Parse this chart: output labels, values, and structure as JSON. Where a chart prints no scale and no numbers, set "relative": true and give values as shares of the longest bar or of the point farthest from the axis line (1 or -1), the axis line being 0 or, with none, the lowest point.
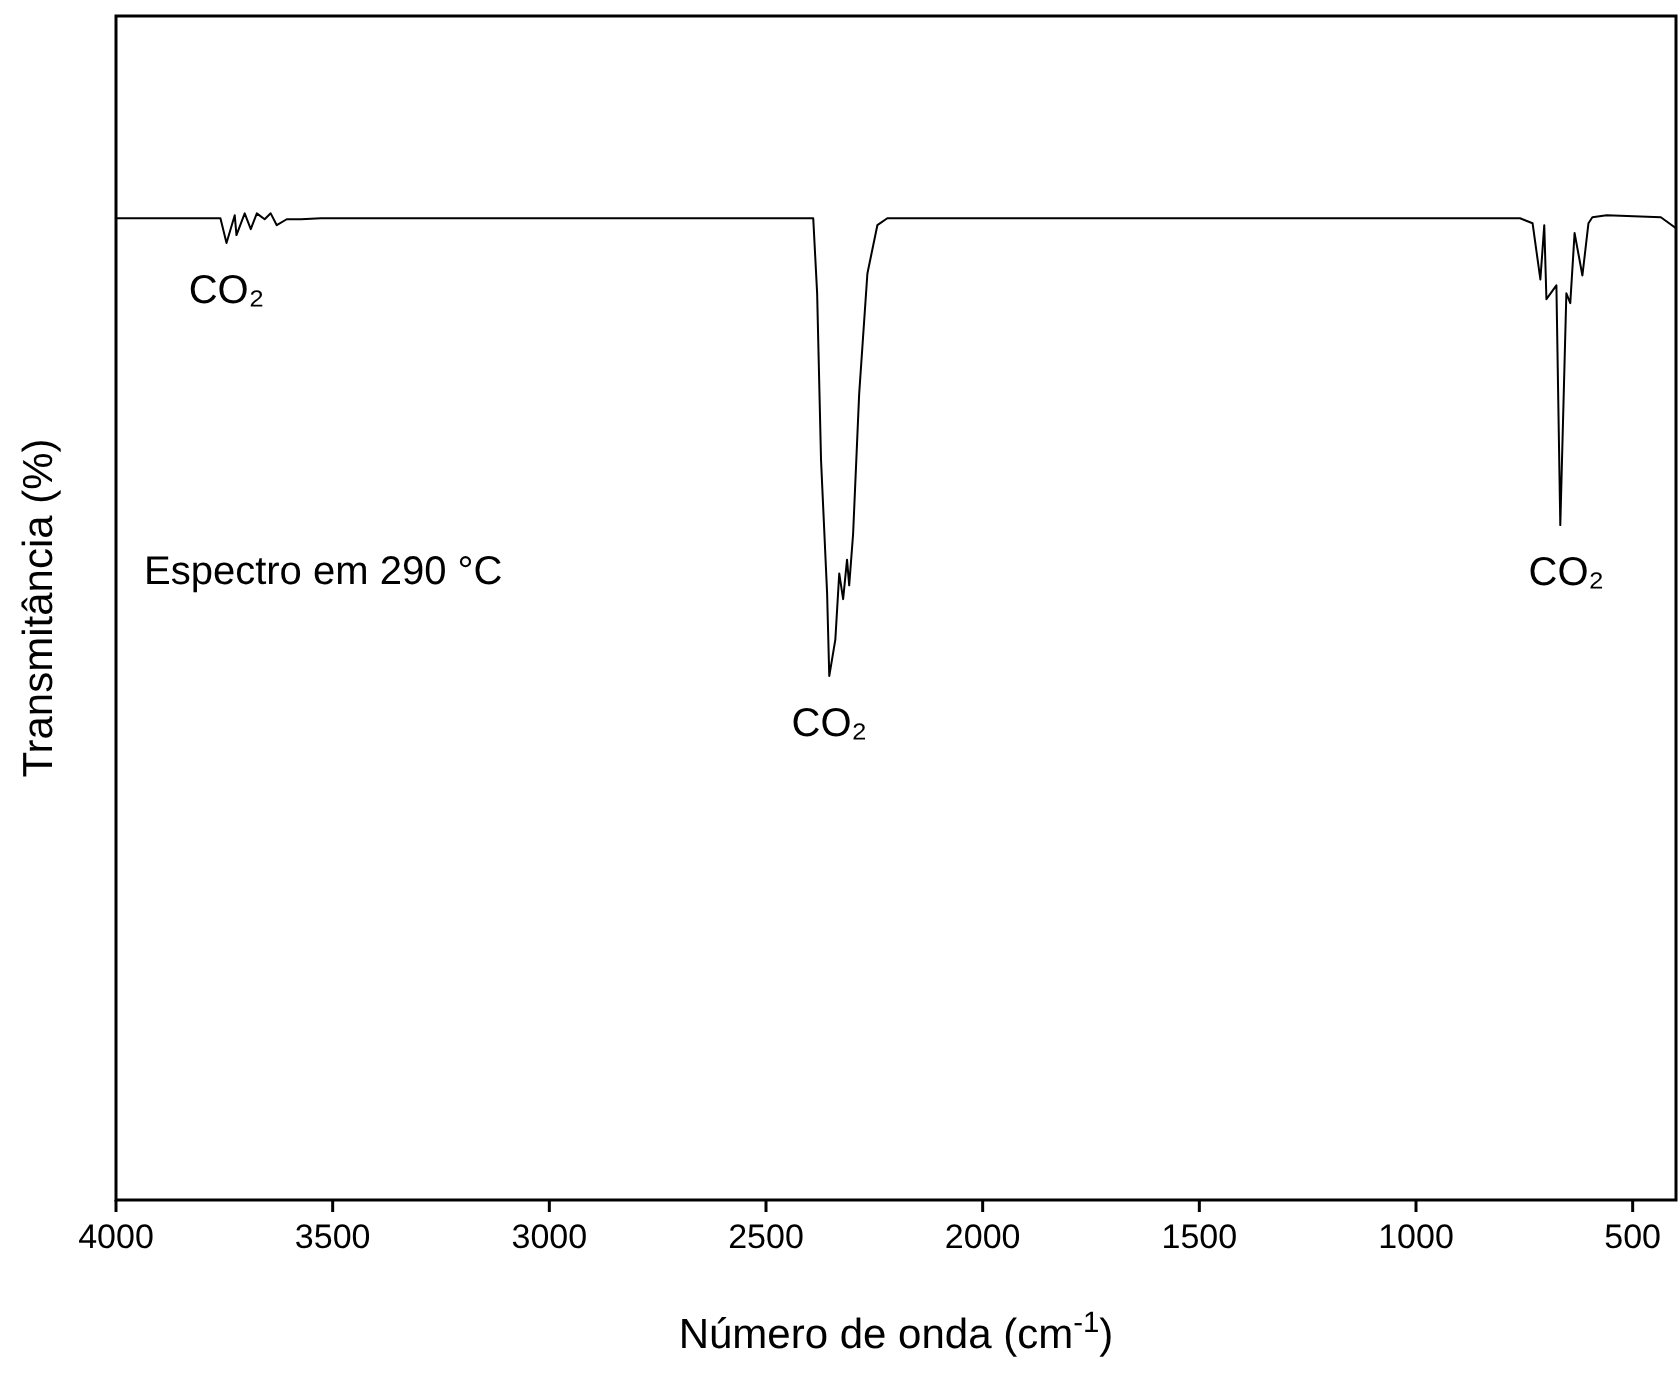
{
  "chart_data": {
    "type": "line",
    "relative": true,
    "xlabel": "Número de onda (cm$^{-1}$)",
    "ylabel": "Transmitância (%)",
    "xlim": [
      4000,
      400
    ],
    "xticks": [
      4000,
      3500,
      3000,
      2500,
      2000,
      1500,
      1000,
      500
    ],
    "annotations": [
      {
        "text": "CO₂",
        "x": 3745,
        "y": 0.97
      },
      {
        "text": "CO₂",
        "x": 2354,
        "y": 0.531
      },
      {
        "text": "CO₂",
        "x": 653,
        "y": 0.684
      },
      "Espectro em 290 °C"
    ],
    "series": [
      {
        "color": "#000000",
        "x": [
          4000,
          3900,
          3759,
          3745,
          3726,
          3722,
          3703,
          3689,
          3675,
          3657,
          3643,
          3629,
          3606,
          3573,
          3527,
          3300,
          3000,
          2700,
          2450,
          2391,
          2382,
          2373,
          2359,
          2354,
          2340,
          2331,
          2322,
          2313,
          2308,
          2299,
          2285,
          2266,
          2243,
          2220,
          2136,
          1997,
          1700,
          1400,
          1100,
          900,
          760,
          731,
          713,
          704,
          699,
          676,
          667,
          653,
          644,
          634,
          616,
          602,
          593,
          560,
          435,
          400
        ],
        "values": [
          0.995,
          0.995,
          0.995,
          0.97,
          0.998,
          0.978,
          1.0,
          0.984,
          1.0,
          0.994,
          1.0,
          0.988,
          0.994,
          0.994,
          0.995,
          0.995,
          0.995,
          0.995,
          0.995,
          0.995,
          0.919,
          0.75,
          0.615,
          0.531,
          0.568,
          0.635,
          0.609,
          0.649,
          0.623,
          0.675,
          0.817,
          0.939,
          0.988,
          0.995,
          0.995,
          0.995,
          0.995,
          0.995,
          0.995,
          0.995,
          0.995,
          0.99,
          0.933,
          0.988,
          0.913,
          0.927,
          0.684,
          0.919,
          0.909,
          0.98,
          0.937,
          0.99,
          0.996,
          0.998,
          0.996,
          0.985
        ]
      }
    ]
  }
}
